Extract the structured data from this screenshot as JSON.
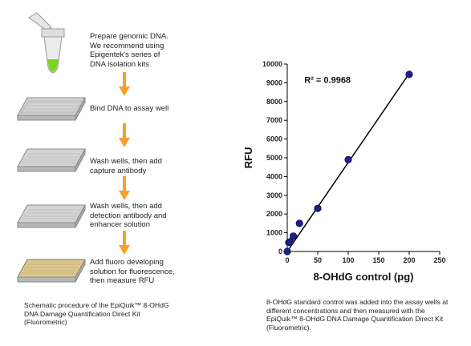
{
  "protocol": {
    "steps": [
      {
        "line1": "Prepare genomic DNA.",
        "line2": "We recommend using",
        "line3": "Epigentek's series of",
        "line4": "DNA isolation kits"
      },
      {
        "line1": "Bind DNA to assay well"
      },
      {
        "line1": "Wash wells, then add",
        "line2": "capture antibody"
      },
      {
        "line1": "Wash wells, then add",
        "line2": "detection antibody and",
        "line3": "enhancer solution"
      },
      {
        "line1": "Add fluoro developing",
        "line2": "solution for fluorescence,",
        "line3": "then measure RFU"
      }
    ],
    "caption": {
      "line1": "Schematic procedure of the EpiQuik™ 8-OHdG",
      "line2": "DNA Damage Quantification Direct Kit",
      "line3": "(Fluorometric)"
    },
    "colors": {
      "arrow": "#f5a12a",
      "tube_liquid": "#7ed321",
      "plate_gray": "#c9c9c9",
      "plate_gold": "#d9c48c"
    }
  },
  "chart_data": {
    "type": "scatter",
    "title": "",
    "xlabel": "8-OHdG control (pg)",
    "ylabel": "RFU",
    "xlim": [
      0,
      250
    ],
    "ylim": [
      0,
      10000
    ],
    "xticks": [
      0,
      50,
      100,
      150,
      200,
      250
    ],
    "yticks": [
      0,
      1000,
      2000,
      3000,
      4000,
      5000,
      6000,
      7000,
      8000,
      9000,
      10000
    ],
    "points": [
      {
        "x": 0,
        "y": 0
      },
      {
        "x": 2.5,
        "y": 480
      },
      {
        "x": 5,
        "y": 520
      },
      {
        "x": 10,
        "y": 820
      },
      {
        "x": 20,
        "y": 1500
      },
      {
        "x": 50,
        "y": 2300
      },
      {
        "x": 100,
        "y": 4900
      },
      {
        "x": 200,
        "y": 9450
      }
    ],
    "fit_line": {
      "x0": 0,
      "y0": 0,
      "x1": 200,
      "y1": 9500
    },
    "annotation": "R² = 0.9968",
    "grid": false,
    "legend": "none",
    "colors": {
      "marker": "#1f1f8a",
      "line": "#000000"
    }
  },
  "chart_caption": {
    "line1": "8-OHdG standard control was added into the assay wells at",
    "line2": "different concentrations and then measured with the",
    "line3": "EpiQuik™ 8-OHdG DNA Damage Quantification Direct Kit",
    "line4": "(Fluorometric)."
  }
}
